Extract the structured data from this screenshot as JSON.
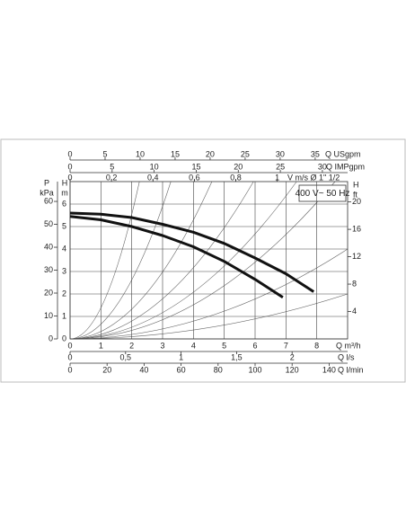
{
  "chart_data": {
    "type": "line",
    "annotation": "400 V~ 50 Hz",
    "grid": true,
    "xlabel": "Q m³/h",
    "xlim": [
      0,
      9
    ],
    "xticks": [
      0,
      1,
      2,
      3,
      4,
      5,
      6,
      7,
      8
    ],
    "ylabel": [
      "H",
      "m"
    ],
    "ylim": [
      0,
      7
    ],
    "yticks": [
      0,
      1,
      2,
      3,
      4,
      5,
      6
    ],
    "extra_x_axes": [
      {
        "label": "Q USgpm",
        "side": "top",
        "xlim": [
          0,
          39.63
        ],
        "xticks": [
          0,
          5,
          10,
          15,
          20,
          25,
          30,
          35
        ]
      },
      {
        "label": "Q IMPgpm",
        "side": "top",
        "xlim": [
          0,
          33
        ],
        "xticks": [
          0,
          5,
          10,
          15,
          20,
          25,
          30
        ]
      },
      {
        "label": "V m/s Ø 1\" 1/2",
        "side": "top",
        "xlim": [
          0,
          1.34
        ],
        "xticks": [
          0,
          {
            "value": 0.2,
            "label": "0,2"
          },
          {
            "value": 0.4,
            "label": "0,4"
          },
          {
            "value": 0.6,
            "label": "0,6"
          },
          {
            "value": 0.8,
            "label": "0,8"
          },
          1
        ]
      },
      {
        "label": "Q l/s",
        "side": "bottom",
        "xlim": [
          0,
          2.5
        ],
        "xticks": [
          0,
          {
            "value": 0.5,
            "label": "0,5"
          },
          1,
          {
            "value": 1.5,
            "label": "1,5"
          },
          2
        ]
      },
      {
        "label": "Q l/min",
        "side": "bottom",
        "xlim": [
          0,
          150
        ],
        "xticks": [
          0,
          20,
          40,
          60,
          80,
          100,
          120,
          140
        ]
      }
    ],
    "extra_y_axes": [
      {
        "label": [
          "P",
          "kPa"
        ],
        "side": "left",
        "ylim": [
          0,
          68.65
        ],
        "yticks": [
          0,
          10,
          20,
          30,
          40,
          50,
          60
        ]
      },
      {
        "label": [
          "H",
          "ft"
        ],
        "side": "right",
        "ylim": [
          0,
          22.97
        ],
        "yticks": [
          4,
          8,
          12,
          16,
          20
        ]
      }
    ],
    "series": [
      {
        "color": "#111111",
        "x": [
          0,
          1,
          2,
          3,
          4,
          5,
          6,
          7,
          7.9
        ],
        "values": [
          5.6,
          5.55,
          5.4,
          5.1,
          4.75,
          4.25,
          3.6,
          2.9,
          2.1
        ]
      },
      {
        "color": "#111111",
        "x": [
          0,
          1,
          2,
          3,
          4,
          5,
          6,
          6.9
        ],
        "values": [
          5.45,
          5.3,
          5.0,
          4.6,
          4.1,
          3.45,
          2.65,
          1.85
        ]
      }
    ]
  }
}
